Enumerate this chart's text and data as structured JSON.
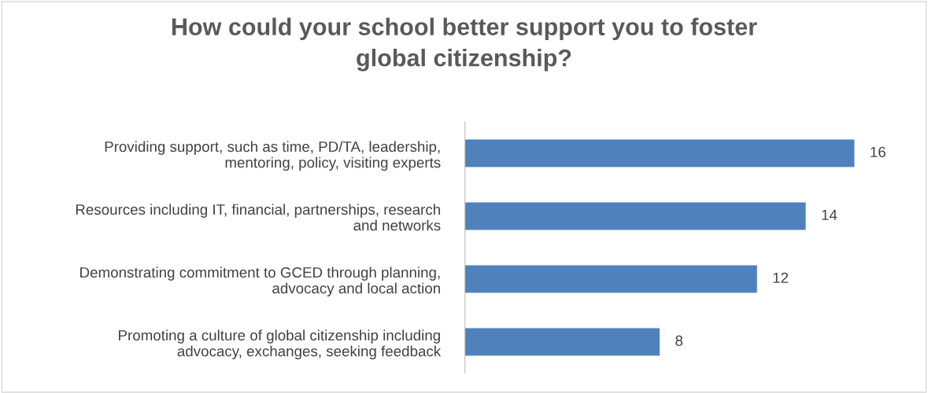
{
  "chart_data": {
    "type": "bar",
    "orientation": "horizontal",
    "title": "How could your school better support you to foster\nglobal citizenship?",
    "categories": [
      "Providing support, such as time, PD/TA, leadership,\nmentoring, policy, visiting experts",
      "Resources including IT, financial, partnerships, research\nand networks",
      "Demonstrating commitment to GCED through planning,\nadvocacy and local action",
      "Promoting a culture of global citizenship including\nadvocacy, exchanges, seeking feedback"
    ],
    "values": [
      16,
      14,
      12,
      8
    ],
    "color": "#4f81bd",
    "data_labels": true,
    "grid": false,
    "legend": false,
    "tick_labels": "y"
  }
}
